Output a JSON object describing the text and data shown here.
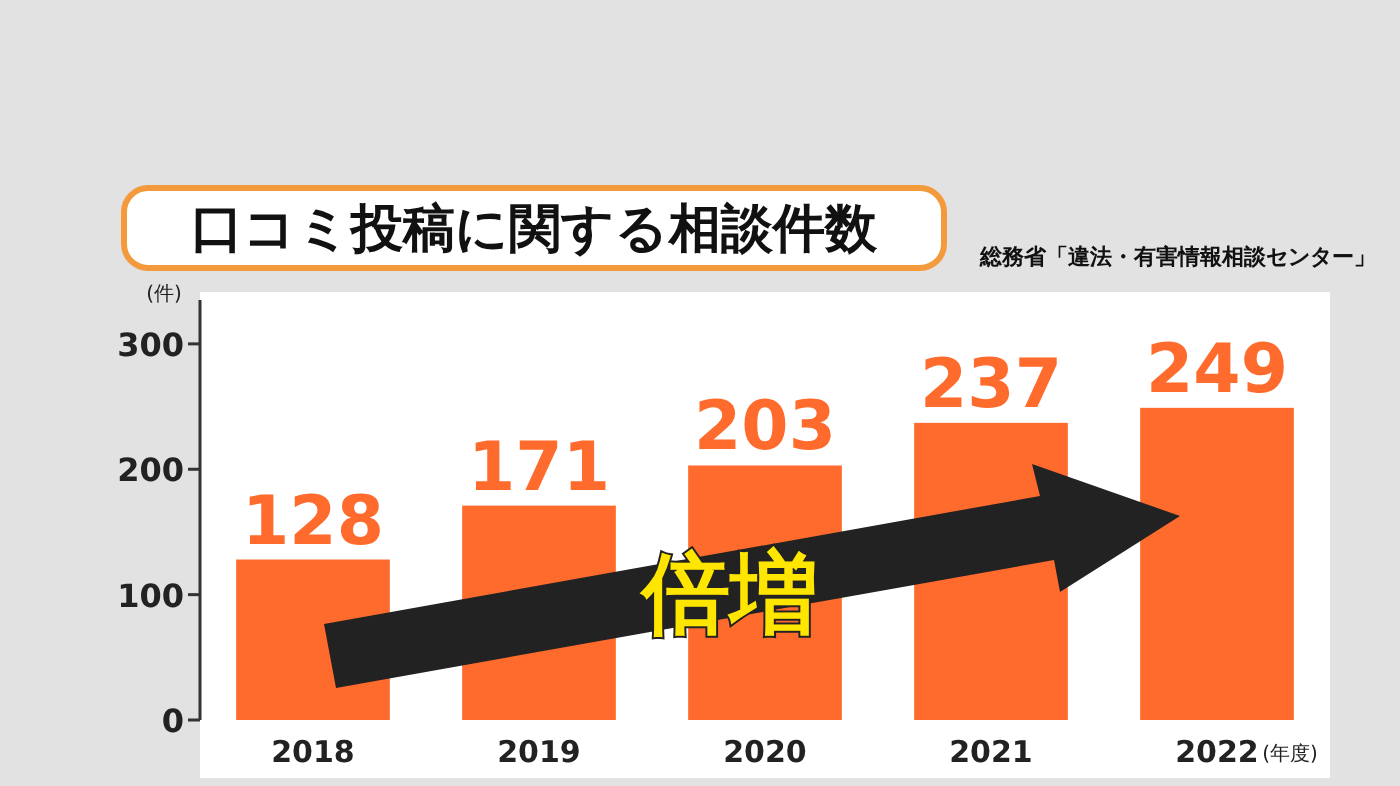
{
  "chart_data": {
    "type": "bar",
    "title": "口コミ投稿に関する相談件数",
    "annotations": [
      "総務省「違法・有害情報相談センター」",
      "倍増"
    ],
    "ylabel": "(件)",
    "xlabel": "(年度)",
    "categories": [
      "2018",
      "2019",
      "2020",
      "2021",
      "2022"
    ],
    "series": [
      {
        "color": "#ff6b2d",
        "values": [
          128,
          171,
          203,
          237,
          249
        ]
      }
    ],
    "ylim": [
      0,
      335
    ],
    "yticks": [
      0,
      100,
      200,
      300
    ],
    "data_labels": true,
    "grid": false
  }
}
